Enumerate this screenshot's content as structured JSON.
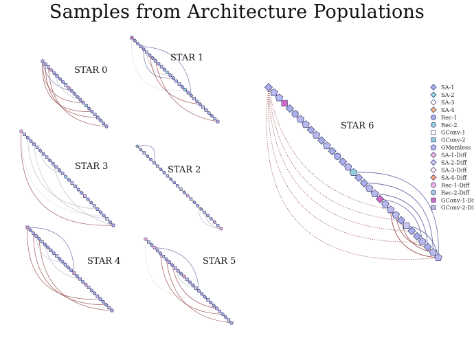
{
  "title": "Samples from Architecture Populations",
  "colors": {
    "mesh_edge": "#5a5a9e",
    "diff_edge": "#8e3a3a",
    "faint_edge": "#b9b9c6",
    "node_stroke": "#3a3a72",
    "star_node": "#b8b9ee",
    "spine": "#222222"
  },
  "legend": [
    {
      "label": "SA-1",
      "shape": "diamond",
      "fill": "#a9aee8"
    },
    {
      "label": "SA-2",
      "shape": "diamond",
      "fill": "#8fd0dc"
    },
    {
      "label": "SA-3",
      "shape": "diamond",
      "fill": "#ffffff"
    },
    {
      "label": "SA-4",
      "shape": "diamond",
      "fill": "#f6b27c"
    },
    {
      "label": "Rec-1",
      "shape": "circle",
      "fill": "#a9aee8"
    },
    {
      "label": "Rec-2",
      "shape": "circle",
      "fill": "#8fd0dc"
    },
    {
      "label": "GConv-1",
      "shape": "square",
      "fill": "#ffffff"
    },
    {
      "label": "GConv-2",
      "shape": "square",
      "fill": "#8fd0dc"
    },
    {
      "label": "GMemless",
      "shape": "pentagon",
      "fill": "#b8b9ee"
    },
    {
      "label": "SA-1-Diff",
      "shape": "diamond",
      "fill": "#f2b0de"
    },
    {
      "label": "SA-2-Diff",
      "shape": "diamond",
      "fill": "#c6c6f5"
    },
    {
      "label": "SA-3-Diff",
      "shape": "diamond",
      "fill": "#fde7ee"
    },
    {
      "label": "SA-4-Diff",
      "shape": "diamond",
      "fill": "#f6a07a"
    },
    {
      "label": "Rec-1-Diff",
      "shape": "circle",
      "fill": "#f2b0de"
    },
    {
      "label": "Rec-2-Diff",
      "shape": "circle",
      "fill": "#a9cbe0"
    },
    {
      "label": "GConv-1-Diff",
      "shape": "square",
      "fill": "#d068c4"
    },
    {
      "label": "GConv-2-Diff",
      "shape": "square",
      "fill": "#c0bce0"
    }
  ],
  "stars": [
    {
      "label": "STAR 0",
      "nodes": [
        "pentagon",
        "circle",
        "square",
        "diamond",
        "circle",
        "pentagon",
        "diamond",
        "circle",
        "square",
        "diamond",
        "circle",
        "diamond",
        "diamond",
        "circle",
        "pentagon",
        "square",
        "diamond",
        "circle",
        "square",
        "pentagon",
        "diamond",
        "circle",
        "pentagon"
      ],
      "accents": {
        "3": "#f2b0de",
        "9": "#f2b0de",
        "15": "#8fd0dc"
      }
    },
    {
      "label": "STAR 1",
      "nodes": [
        "square",
        "diamond",
        "circle",
        "pentagon",
        "diamond",
        "square",
        "circle",
        "diamond",
        "pentagon",
        "circle",
        "square",
        "diamond",
        "circle",
        "pentagon",
        "diamond",
        "circle",
        "square",
        "diamond",
        "pentagon",
        "circle",
        "diamond",
        "square",
        "circle",
        "diamond",
        "square",
        "pentagon",
        "circle",
        "diamond",
        "square",
        "pentagon"
      ],
      "accents": {
        "0": "#d068c4",
        "12": "#8fd0dc",
        "18": "#8fd0dc"
      }
    },
    {
      "label": "STAR 3",
      "nodes": [
        "circle",
        "square",
        "diamond",
        "circle",
        "pentagon",
        "square",
        "diamond",
        "circle",
        "square",
        "diamond",
        "circle",
        "pentagon",
        "diamond",
        "square",
        "circle",
        "diamond",
        "square",
        "pentagon",
        "circle",
        "diamond",
        "square",
        "circle",
        "diamond",
        "square",
        "pentagon",
        "diamond",
        "circle",
        "square",
        "diamond",
        "pentagon"
      ],
      "accents": {
        "0": "#f2b0de",
        "14": "#8fd0dc",
        "20": "#f2b0de"
      }
    },
    {
      "label": "STAR 2",
      "nodes": [
        "diamond",
        "circle",
        "square",
        "diamond",
        "circle",
        "pentagon",
        "square",
        "diamond",
        "circle",
        "square",
        "diamond",
        "circle",
        "pentagon",
        "square",
        "diamond",
        "circle",
        "square",
        "diamond",
        "circle",
        "diamond",
        "square",
        "pentagon",
        "circle",
        "diamond",
        "square",
        "circle"
      ],
      "accents": {
        "0": "#8fd0dc",
        "15": "#f2b0de",
        "23": "#f2b0de",
        "25": "#f2b0de"
      }
    },
    {
      "label": "STAR 4",
      "nodes": [
        "square",
        "diamond",
        "circle",
        "pentagon",
        "diamond",
        "square",
        "circle",
        "diamond",
        "pentagon",
        "circle",
        "square",
        "diamond",
        "circle",
        "pentagon",
        "diamond",
        "circle",
        "square",
        "diamond",
        "pentagon",
        "circle",
        "diamond",
        "square",
        "circle",
        "diamond",
        "square",
        "pentagon",
        "circle",
        "diamond",
        "square",
        "pentagon"
      ],
      "accents": {
        "0": "#f2b0de",
        "16": "#f2b0de",
        "20": "#f2b0de"
      }
    },
    {
      "label": "STAR 5",
      "nodes": [
        "circle",
        "square",
        "diamond",
        "pentagon",
        "circle",
        "diamond",
        "square",
        "circle",
        "pentagon",
        "diamond",
        "square",
        "circle",
        "diamond",
        "pentagon",
        "square",
        "circle",
        "diamond",
        "square",
        "pentagon",
        "circle",
        "diamond",
        "square",
        "circle",
        "diamond",
        "pentagon",
        "square",
        "circle",
        "diamond",
        "square",
        "pentagon"
      ],
      "accents": {
        "0": "#f2b0de",
        "3": "#f2b0de",
        "13": "#f2b0de"
      }
    },
    {
      "label": "STAR 6",
      "nodes": [
        "diamond",
        "pentagon",
        "pentagon",
        "square",
        "diamond",
        "circle",
        "pentagon",
        "pentagon",
        "diamond",
        "pentagon",
        "diamond",
        "pentagon",
        "diamond",
        "circle",
        "diamond",
        "pentagon",
        "pentagon",
        "diamond",
        "diamond",
        "pentagon",
        "pentagon",
        "diamond",
        "pentagon",
        "pentagon",
        "pentagon",
        "diamond",
        "square",
        "diamond",
        "diamond",
        "pentagon",
        "diamond",
        "pentagon",
        "pentagon"
      ],
      "accents": {
        "3": "#d068c4",
        "16": "#8fd0dc",
        "21": "#d068c4"
      }
    }
  ]
}
